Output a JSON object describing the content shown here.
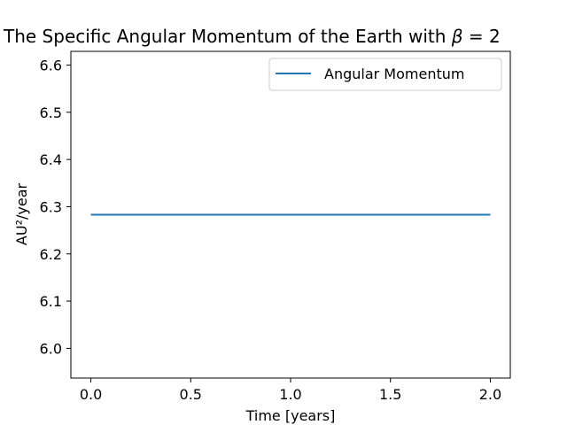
{
  "chart_data": {
    "type": "line",
    "title": "The Specific Angular Momentum of the Earth with β = 2",
    "xlabel": "Time [years]",
    "ylabel": "AU²/year",
    "xlim": [
      -0.1,
      2.1
    ],
    "ylim": [
      5.937,
      6.629
    ],
    "xticks": [
      0.0,
      0.5,
      1.0,
      1.5,
      2.0
    ],
    "xtick_labels": [
      "0.0",
      "0.5",
      "1.0",
      "1.5",
      "2.0"
    ],
    "yticks": [
      6.0,
      6.1,
      6.2,
      6.3,
      6.4,
      6.5,
      6.6
    ],
    "ytick_labels": [
      "6.0",
      "6.1",
      "6.2",
      "6.3",
      "6.4",
      "6.5",
      "6.6"
    ],
    "grid": false,
    "legend_position": "top-right",
    "series": [
      {
        "name": "Angular Momentum",
        "color": "#1f77b4",
        "x": [
          0.0,
          0.5,
          1.0,
          1.5,
          2.0
        ],
        "y": [
          6.283,
          6.283,
          6.283,
          6.283,
          6.283
        ]
      }
    ]
  }
}
